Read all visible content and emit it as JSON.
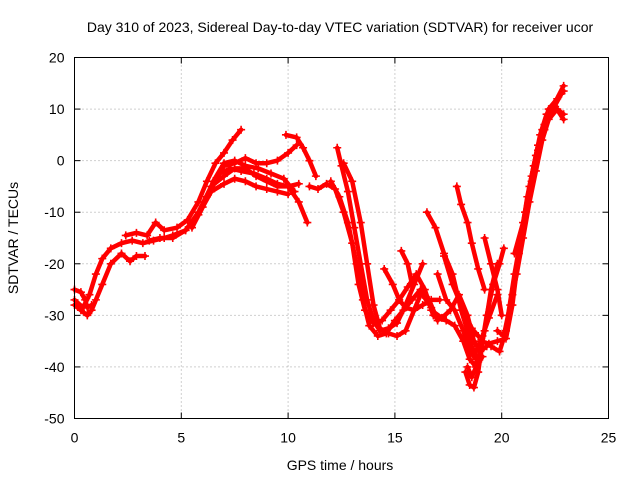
{
  "chart_data": {
    "type": "line",
    "title": "Day 310 of 2023, Sidereal Day-to-day VTEC variation (SDTVAR) for receiver ucor",
    "xlabel": "GPS time / hours",
    "ylabel": "SDTVAR / TECUs",
    "xlim": [
      0,
      25
    ],
    "ylim": [
      -50,
      20
    ],
    "xticks": [
      0,
      5,
      10,
      15,
      20,
      25
    ],
    "yticks": [
      -50,
      -40,
      -30,
      -20,
      -10,
      0,
      10,
      20
    ],
    "grid": true,
    "marker": "plus",
    "color": "#ff0000",
    "series": [
      {
        "points": [
          [
            0.0,
            -25
          ],
          [
            0.3,
            -25.5
          ],
          [
            0.5,
            -27
          ],
          [
            0.6,
            -28.5
          ],
          [
            0.8,
            -28
          ]
        ]
      },
      {
        "points": [
          [
            0.0,
            -28
          ],
          [
            0.3,
            -29
          ],
          [
            0.6,
            -30
          ],
          [
            0.8,
            -29
          ],
          [
            1.0,
            -27
          ],
          [
            1.3,
            -24
          ],
          [
            1.7,
            -20
          ],
          [
            2.2,
            -18
          ],
          [
            2.6,
            -19.5
          ],
          [
            2.9,
            -18.5
          ],
          [
            3.3,
            -18.5
          ]
        ]
      },
      {
        "points": [
          [
            0.0,
            -27
          ],
          [
            0.4,
            -28.5
          ],
          [
            0.7,
            -26
          ],
          [
            1.0,
            -22
          ],
          [
            1.3,
            -19
          ],
          [
            1.7,
            -17
          ],
          [
            2.2,
            -16
          ],
          [
            2.7,
            -15.5
          ],
          [
            3.2,
            -16
          ],
          [
            3.7,
            -15.5
          ],
          [
            4.2,
            -15
          ],
          [
            4.6,
            -14.5
          ],
          [
            5.2,
            -13.5
          ],
          [
            5.8,
            -10
          ],
          [
            6.4,
            -5
          ],
          [
            7.0,
            -3
          ],
          [
            7.5,
            -1.5
          ],
          [
            8.0,
            -1.5
          ],
          [
            8.5,
            -3
          ],
          [
            9.0,
            -4
          ],
          [
            9.5,
            -5
          ],
          [
            10.0,
            -5
          ],
          [
            10.5,
            -8
          ],
          [
            10.9,
            -12
          ]
        ]
      },
      {
        "points": [
          [
            2.4,
            -14.5
          ],
          [
            2.9,
            -14
          ],
          [
            3.4,
            -14.5
          ],
          [
            3.8,
            -12
          ],
          [
            4.2,
            -13.5
          ],
          [
            4.8,
            -13
          ],
          [
            5.3,
            -11.5
          ],
          [
            5.8,
            -8
          ],
          [
            6.2,
            -4
          ],
          [
            6.6,
            -0.5
          ],
          [
            7.0,
            1.5
          ],
          [
            7.4,
            4
          ],
          [
            7.8,
            6
          ]
        ]
      },
      {
        "points": [
          [
            3.5,
            -15.5
          ],
          [
            4.0,
            -15
          ],
          [
            4.6,
            -15
          ],
          [
            5.2,
            -13.5
          ],
          [
            5.8,
            -10.5
          ],
          [
            6.4,
            -6
          ],
          [
            7.0,
            -4.5
          ],
          [
            7.5,
            -3.5
          ],
          [
            8.0,
            -4
          ],
          [
            8.5,
            -5
          ],
          [
            9.0,
            -5.5
          ],
          [
            9.5,
            -6
          ],
          [
            10.0,
            -6.5
          ]
        ]
      },
      {
        "points": [
          [
            5.5,
            -13
          ],
          [
            6.0,
            -9
          ],
          [
            6.5,
            -4
          ],
          [
            7.0,
            -0.5
          ],
          [
            7.5,
            0
          ],
          [
            8.0,
            -1
          ],
          [
            8.6,
            -1.5
          ],
          [
            9.2,
            -2.5
          ],
          [
            9.8,
            -3.5
          ],
          [
            10.3,
            -6
          ]
        ]
      },
      {
        "points": [
          [
            6.2,
            -7
          ],
          [
            6.8,
            -2.5
          ],
          [
            7.3,
            -1.5
          ],
          [
            7.8,
            -2
          ],
          [
            8.4,
            -2.5
          ],
          [
            9.0,
            -3.5
          ],
          [
            9.5,
            -4.5
          ],
          [
            10.0,
            -5
          ],
          [
            10.5,
            -4.5
          ]
        ]
      },
      {
        "points": [
          [
            6.5,
            -4
          ],
          [
            7.0,
            -1
          ],
          [
            7.5,
            -0.5
          ],
          [
            8.0,
            0.5
          ],
          [
            8.5,
            -0.5
          ],
          [
            9.0,
            -0.5
          ],
          [
            9.5,
            0
          ],
          [
            10.0,
            1.5
          ],
          [
            10.4,
            3
          ]
        ]
      },
      {
        "points": [
          [
            9.9,
            5
          ],
          [
            10.4,
            4.5
          ],
          [
            10.7,
            2.5
          ],
          [
            11.0,
            0
          ],
          [
            11.3,
            -3
          ]
        ]
      },
      {
        "points": [
          [
            11.0,
            -5
          ],
          [
            11.4,
            -5.5
          ],
          [
            11.8,
            -4.5
          ],
          [
            12.2,
            -5.5
          ],
          [
            12.6,
            -10
          ],
          [
            13.0,
            -16
          ],
          [
            13.3,
            -24
          ],
          [
            13.6,
            -29
          ],
          [
            14.0,
            -31.5
          ],
          [
            14.4,
            -31
          ],
          [
            14.8,
            -29
          ],
          [
            15.2,
            -27
          ],
          [
            15.6,
            -24.5
          ],
          [
            16.0,
            -22
          ],
          [
            16.4,
            -25
          ],
          [
            16.8,
            -30
          ]
        ]
      },
      {
        "points": [
          [
            12.0,
            -4
          ],
          [
            12.4,
            -7
          ],
          [
            12.8,
            -12
          ],
          [
            13.2,
            -20
          ],
          [
            13.5,
            -27
          ],
          [
            13.8,
            -32
          ],
          [
            14.2,
            -34
          ],
          [
            14.6,
            -33.5
          ],
          [
            15.0,
            -31
          ],
          [
            15.4,
            -29
          ],
          [
            15.8,
            -27
          ],
          [
            16.2,
            -25
          ],
          [
            16.6,
            -27
          ],
          [
            17.0,
            -31
          ]
        ]
      },
      {
        "points": [
          [
            12.3,
            2.5
          ],
          [
            12.5,
            -1
          ],
          [
            12.8,
            -6
          ],
          [
            13.1,
            -13
          ],
          [
            13.4,
            -20
          ],
          [
            13.7,
            -27
          ],
          [
            14.0,
            -31
          ],
          [
            14.3,
            -33
          ],
          [
            14.7,
            -32.5
          ],
          [
            15.1,
            -31.5
          ],
          [
            15.5,
            -28
          ],
          [
            15.9,
            -24
          ],
          [
            16.3,
            -20
          ]
        ]
      },
      {
        "points": [
          [
            12.6,
            -0.5
          ],
          [
            13.0,
            -4
          ],
          [
            13.4,
            -12
          ],
          [
            13.7,
            -20
          ],
          [
            14.0,
            -28
          ],
          [
            14.3,
            -32.5
          ],
          [
            14.7,
            -33.5
          ],
          [
            15.1,
            -34
          ],
          [
            15.5,
            -33
          ],
          [
            15.9,
            -29
          ],
          [
            16.3,
            -25
          ]
        ]
      },
      {
        "points": [
          [
            14.5,
            -21
          ],
          [
            14.9,
            -24
          ],
          [
            15.2,
            -27
          ],
          [
            15.5,
            -28.5
          ],
          [
            15.9,
            -29
          ],
          [
            16.3,
            -28
          ],
          [
            16.7,
            -27
          ],
          [
            17.1,
            -27
          ]
        ]
      },
      {
        "points": [
          [
            15.3,
            -17.5
          ],
          [
            15.6,
            -20
          ],
          [
            15.8,
            -24
          ]
        ]
      },
      {
        "points": [
          [
            16.7,
            -29
          ],
          [
            17.2,
            -30.5
          ],
          [
            17.6,
            -29
          ],
          [
            18.0,
            -26
          ],
          [
            18.4,
            -30
          ],
          [
            18.7,
            -35
          ],
          [
            19.0,
            -37
          ],
          [
            19.3,
            -36
          ]
        ]
      },
      {
        "points": [
          [
            16.3,
            -26
          ],
          [
            16.7,
            -28.5
          ],
          [
            17.0,
            -30.5
          ],
          [
            17.4,
            -31
          ],
          [
            17.8,
            -32
          ],
          [
            18.2,
            -35
          ],
          [
            18.5,
            -38.5
          ],
          [
            18.8,
            -40
          ],
          [
            19.1,
            -38
          ]
        ]
      },
      {
        "points": [
          [
            16.5,
            -10
          ],
          [
            16.9,
            -13
          ],
          [
            17.3,
            -18
          ],
          [
            17.7,
            -22
          ],
          [
            18.1,
            -29
          ],
          [
            18.4,
            -33
          ],
          [
            18.6,
            -36
          ],
          [
            18.9,
            -38.5
          ]
        ]
      },
      {
        "points": [
          [
            17.0,
            -22
          ],
          [
            17.4,
            -27
          ],
          [
            17.8,
            -29
          ],
          [
            18.2,
            -33
          ],
          [
            18.5,
            -37
          ],
          [
            18.8,
            -38.5
          ]
        ]
      },
      {
        "points": [
          [
            17.9,
            -5
          ],
          [
            18.1,
            -8.5
          ],
          [
            18.4,
            -12
          ],
          [
            18.6,
            -16
          ],
          [
            18.9,
            -21
          ],
          [
            19.2,
            -25
          ]
        ]
      },
      {
        "points": [
          [
            17.3,
            -18.5
          ],
          [
            17.7,
            -24
          ],
          [
            18.0,
            -27
          ],
          [
            18.3,
            -30
          ],
          [
            18.6,
            -32.5
          ],
          [
            18.9,
            -34
          ]
        ]
      },
      {
        "points": [
          [
            18.3,
            -41
          ],
          [
            18.5,
            -43.5
          ],
          [
            18.7,
            -44
          ],
          [
            18.9,
            -41
          ],
          [
            19.1,
            -35
          ],
          [
            19.3,
            -30
          ],
          [
            19.6,
            -24
          ],
          [
            19.9,
            -20
          ],
          [
            20.1,
            -17
          ]
        ]
      },
      {
        "points": [
          [
            18.4,
            -40
          ],
          [
            18.6,
            -42
          ],
          [
            18.9,
            -39
          ],
          [
            19.2,
            -33
          ],
          [
            19.5,
            -25
          ],
          [
            19.8,
            -20
          ]
        ]
      },
      {
        "points": [
          [
            18.8,
            -37
          ],
          [
            19.1,
            -34
          ],
          [
            19.4,
            -30.5
          ],
          [
            19.8,
            -26
          ]
        ]
      },
      {
        "points": [
          [
            19.2,
            -15
          ],
          [
            19.5,
            -20
          ],
          [
            19.8,
            -25
          ],
          [
            20.0,
            -30
          ]
        ]
      },
      {
        "points": [
          [
            19.0,
            -35
          ],
          [
            19.4,
            -35.5
          ],
          [
            19.8,
            -35
          ],
          [
            20.2,
            -34.5
          ],
          [
            20.5,
            -28
          ],
          [
            20.8,
            -18
          ],
          [
            21.1,
            -10
          ],
          [
            21.4,
            -3
          ],
          [
            21.7,
            3
          ],
          [
            22.0,
            7
          ],
          [
            22.4,
            10.5
          ],
          [
            22.9,
            14.5
          ]
        ]
      },
      {
        "points": [
          [
            19.5,
            -36
          ],
          [
            19.9,
            -37
          ],
          [
            20.2,
            -33
          ],
          [
            20.5,
            -26
          ],
          [
            20.8,
            -18
          ],
          [
            21.1,
            -10
          ],
          [
            21.4,
            -4
          ],
          [
            21.7,
            2
          ],
          [
            22.0,
            6
          ],
          [
            22.4,
            10
          ],
          [
            22.8,
            13
          ]
        ]
      },
      {
        "points": [
          [
            19.8,
            -33
          ],
          [
            20.1,
            -34
          ],
          [
            20.4,
            -28
          ],
          [
            20.7,
            -22
          ],
          [
            21.0,
            -15
          ],
          [
            21.3,
            -8
          ],
          [
            21.6,
            -2
          ],
          [
            21.9,
            4
          ],
          [
            22.2,
            8
          ],
          [
            22.6,
            10
          ],
          [
            22.9,
            9
          ]
        ]
      },
      {
        "points": [
          [
            20.3,
            -30
          ],
          [
            20.6,
            -22
          ],
          [
            20.9,
            -15
          ],
          [
            21.2,
            -7
          ],
          [
            21.5,
            -1
          ],
          [
            21.8,
            5
          ],
          [
            22.1,
            9
          ],
          [
            22.5,
            10.5
          ],
          [
            22.9,
            8
          ]
        ]
      },
      {
        "points": [
          [
            20.6,
            -18
          ],
          [
            21.0,
            -12
          ],
          [
            21.3,
            -5
          ],
          [
            21.6,
            1
          ],
          [
            21.9,
            6
          ],
          [
            22.2,
            10
          ],
          [
            22.6,
            12
          ],
          [
            22.9,
            13.5
          ]
        ]
      }
    ]
  }
}
